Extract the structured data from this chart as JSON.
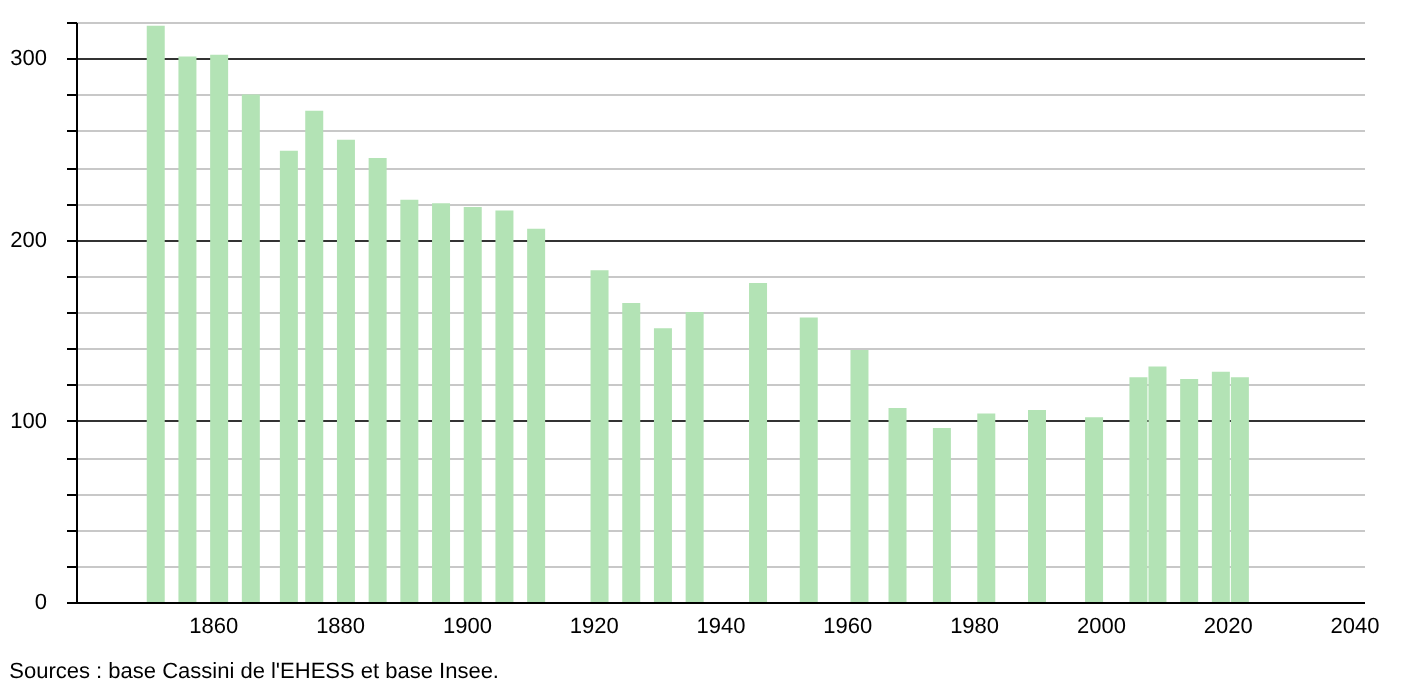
{
  "chart_data": {
    "type": "bar",
    "x": [
      1851,
      1856,
      1861,
      1866,
      1872,
      1876,
      1881,
      1886,
      1891,
      1896,
      1901,
      1906,
      1911,
      1921,
      1926,
      1931,
      1936,
      1946,
      1954,
      1962,
      1968,
      1975,
      1982,
      1990,
      1999,
      2006,
      2009,
      2014,
      2019,
      2022
    ],
    "values": [
      318,
      301,
      302,
      280,
      249,
      271,
      255,
      245,
      222,
      220,
      218,
      216,
      206,
      183,
      165,
      151,
      160,
      176,
      157,
      139,
      107,
      96,
      104,
      106,
      102,
      124,
      130,
      123,
      127,
      124
    ],
    "color": "#b3e3b5",
    "xlim": [
      1840,
      2040
    ],
    "xticks": [
      1860,
      1880,
      1900,
      1920,
      1940,
      1960,
      1980,
      2000,
      2020,
      2040
    ],
    "ylim": [
      0,
      320
    ],
    "yticks": [
      0,
      {
        "value": 20,
        "label": null
      },
      {
        "value": 40,
        "label": null
      },
      {
        "value": 60,
        "label": null
      },
      {
        "value": 80,
        "label": null
      },
      100,
      {
        "value": 120,
        "label": null
      },
      {
        "value": 140,
        "label": null
      },
      {
        "value": 160,
        "label": null
      },
      {
        "value": 180,
        "label": null
      },
      200,
      {
        "value": 220,
        "label": null
      },
      {
        "value": 240,
        "label": null
      },
      {
        "value": 260,
        "label": null
      },
      {
        "value": 280,
        "label": null
      },
      300,
      {
        "value": 320,
        "label": null
      }
    ],
    "grid": "y",
    "annotations": [
      "Sources : base Cassini de l'EHESS et base Insee."
    ]
  }
}
